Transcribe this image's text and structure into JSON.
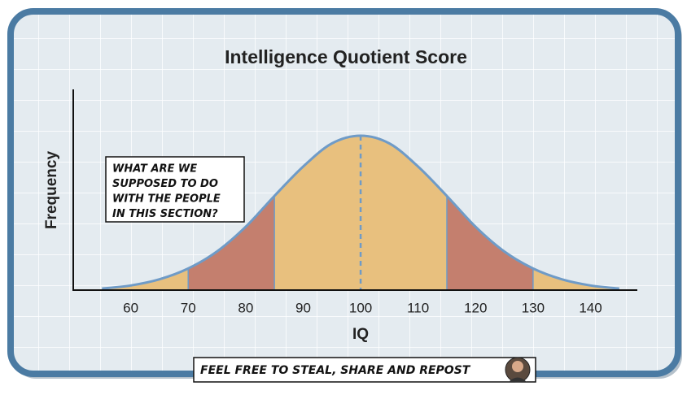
{
  "chart_data": {
    "type": "bell",
    "title": "Intelligence Quotient Score",
    "x_label": "IQ",
    "y_label": "Frequency",
    "x": [
      55,
      60,
      65,
      70,
      75,
      80,
      85,
      90,
      95,
      100,
      105,
      110,
      115,
      120,
      125,
      130,
      135,
      140,
      145
    ],
    "values": [
      0.01,
      0.03,
      0.07,
      0.14,
      0.25,
      0.41,
      0.61,
      0.8,
      0.95,
      1,
      0.95,
      0.8,
      0.61,
      0.41,
      0.25,
      0.14,
      0.07,
      0.03,
      0.01
    ],
    "color": "#6f9bc7",
    "regions": [
      {
        "x0": 55,
        "x1": 70,
        "color": "#e8c07e"
      },
      {
        "x0": 70,
        "x1": 85,
        "color": "#c47f6e"
      },
      {
        "x0": 85,
        "x1": 115,
        "color": "#e8c07e"
      },
      {
        "x0": 115,
        "x1": 130,
        "color": "#c47f6e"
      },
      {
        "x0": 130,
        "x1": 145,
        "color": "#e8c07e"
      }
    ],
    "mean": 100,
    "xlim": [
      50,
      148
    ],
    "ylim": [
      0,
      1.3
    ],
    "xticks": [
      60,
      70,
      80,
      90,
      100,
      110,
      120,
      130,
      140
    ],
    "annotation": [
      "WHAT ARE WE",
      "SUPPOSED TO DO",
      "WITH THE PEOPLE",
      "IN THIS SECTION?"
    ],
    "footer": "FEEL FREE TO STEAL, SHARE AND REPOST"
  }
}
